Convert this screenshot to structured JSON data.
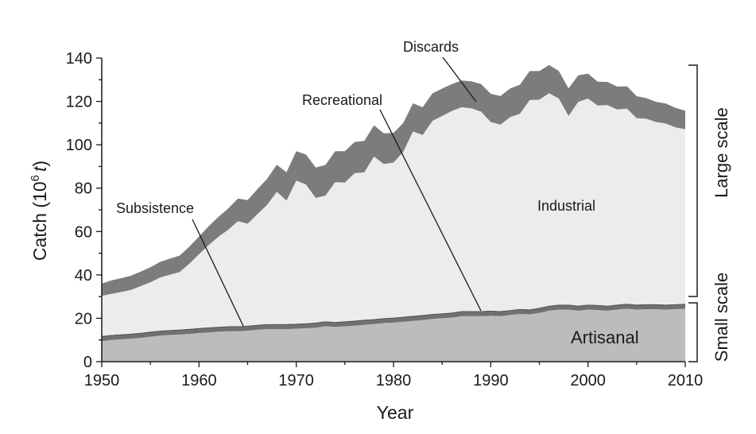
{
  "chart_data": {
    "type": "area",
    "stacked": true,
    "title": "",
    "xlabel": "Year",
    "ylabel_main": "Catch (10",
    "ylabel_sup": "6",
    "ylabel_unit": "t",
    "ylabel_close": ")",
    "xlim": [
      1950,
      2010
    ],
    "ylim": [
      0,
      140
    ],
    "xticks": [
      1950,
      1960,
      1970,
      1980,
      1990,
      2000,
      2010
    ],
    "yticks": [
      0,
      20,
      40,
      60,
      80,
      100,
      120,
      140
    ],
    "x": [
      1950,
      1951,
      1952,
      1953,
      1954,
      1955,
      1956,
      1957,
      1958,
      1959,
      1960,
      1961,
      1962,
      1963,
      1964,
      1965,
      1966,
      1967,
      1968,
      1969,
      1970,
      1971,
      1972,
      1973,
      1974,
      1975,
      1976,
      1977,
      1978,
      1979,
      1980,
      1981,
      1982,
      1983,
      1984,
      1985,
      1986,
      1987,
      1988,
      1989,
      1990,
      1991,
      1992,
      1993,
      1994,
      1995,
      1996,
      1997,
      1998,
      1999,
      2000,
      2001,
      2002,
      2003,
      2004,
      2005,
      2006,
      2007,
      2008,
      2009,
      2010
    ],
    "series": [
      {
        "name": "Artisanal",
        "color": "#bcbcbc",
        "values": [
          9.5,
          10,
          10.3,
          10.6,
          11,
          11.5,
          12,
          12.3,
          12.5,
          12.8,
          13.2,
          13.5,
          13.8,
          14,
          14,
          14.3,
          14.7,
          15,
          15,
          15,
          15.2,
          15.4,
          15.7,
          16.3,
          16,
          16.3,
          16.6,
          17,
          17.3,
          17.8,
          18,
          18.4,
          18.8,
          19.2,
          19.7,
          20,
          20.3,
          21,
          21,
          21,
          21.2,
          21,
          21.5,
          22,
          21.8,
          22.5,
          23.5,
          24,
          24,
          23.5,
          24,
          23.8,
          23.5,
          24,
          24.4,
          24,
          24.2,
          24.2,
          24,
          24.2,
          24.4
        ]
      },
      {
        "name": "Subsistence",
        "color": "#707070",
        "values": [
          1.8,
          1.8,
          1.8,
          1.8,
          1.8,
          1.8,
          1.8,
          1.8,
          1.8,
          1.8,
          1.8,
          1.8,
          1.8,
          1.8,
          1.8,
          1.8,
          1.8,
          1.8,
          1.8,
          1.8,
          1.8,
          1.8,
          1.8,
          1.8,
          1.8,
          1.8,
          1.8,
          1.8,
          1.8,
          1.8,
          1.8,
          1.8,
          1.8,
          1.8,
          1.8,
          1.8,
          1.8,
          1.8,
          1.8,
          1.8,
          1.8,
          1.8,
          1.8,
          1.8,
          1.8,
          1.8,
          1.8,
          1.8,
          1.8,
          1.8,
          1.8,
          1.8,
          1.8,
          1.8,
          1.8,
          1.8,
          1.8,
          1.8,
          1.8,
          1.8,
          1.8
        ]
      },
      {
        "name": "Recreational",
        "color": "#505050",
        "values": [
          0.5,
          0.5,
          0.5,
          0.5,
          0.5,
          0.5,
          0.5,
          0.5,
          0.5,
          0.5,
          0.5,
          0.5,
          0.5,
          0.5,
          0.5,
          0.5,
          0.5,
          0.5,
          0.5,
          0.5,
          0.5,
          0.5,
          0.5,
          0.5,
          0.5,
          0.5,
          0.5,
          0.5,
          0.5,
          0.5,
          0.5,
          0.5,
          0.5,
          0.5,
          0.5,
          0.5,
          0.5,
          0.5,
          0.5,
          0.5,
          0.5,
          0.5,
          0.5,
          0.5,
          0.5,
          0.5,
          0.5,
          0.5,
          0.5,
          0.5,
          0.5,
          0.5,
          0.5,
          0.5,
          0.5,
          0.5,
          0.5,
          0.5,
          0.5,
          0.5,
          0.5
        ]
      },
      {
        "name": "Industrial",
        "color": "#ececec",
        "values": [
          18.5,
          19,
          19.5,
          20.2,
          21.5,
          22.8,
          24.5,
          25.5,
          26.5,
          30,
          34,
          38,
          41.5,
          44.5,
          48.5,
          47,
          51,
          55,
          61,
          57,
          66,
          64,
          57.5,
          58,
          64.5,
          64,
          68,
          68,
          75,
          71,
          71.5,
          76,
          85,
          83,
          89,
          91,
          93,
          94,
          93.5,
          92,
          87,
          86,
          89,
          90,
          96.5,
          96,
          98,
          95,
          87,
          94,
          95,
          92,
          92.5,
          90,
          90,
          86,
          85.5,
          84,
          83.5,
          81.5,
          80.5
        ]
      },
      {
        "name": "Discards",
        "color": "#7c7c7c",
        "values": [
          5.7,
          6.2,
          6.4,
          6.5,
          6.7,
          6.9,
          7.2,
          7.4,
          7.6,
          7.9,
          8.2,
          8.7,
          9.2,
          9.8,
          10.4,
          10.9,
          11.5,
          12,
          12.5,
          13,
          13.5,
          13.8,
          14,
          14.1,
          14.2,
          14.4,
          14.4,
          14.5,
          14.4,
          14.2,
          13.7,
          13.3,
          13,
          12.8,
          12.7,
          12.6,
          12.4,
          12.3,
          12.5,
          12.7,
          13,
          13.2,
          13.2,
          13.4,
          13.4,
          13.2,
          13,
          12.7,
          12.7,
          12.2,
          11.5,
          11,
          10.7,
          10.5,
          10.3,
          10.1,
          9.5,
          9.3,
          9.2,
          9,
          8.5
        ]
      }
    ],
    "annotations": {
      "discards": "Discards",
      "recreational": "Recreational",
      "subsistence": "Subsistence",
      "industrial": "Industrial",
      "artisanal": "Artisanal"
    },
    "brackets": {
      "large": "Large scale",
      "small": "Small scale"
    },
    "grid": false,
    "legend": "none (direct labels)"
  }
}
